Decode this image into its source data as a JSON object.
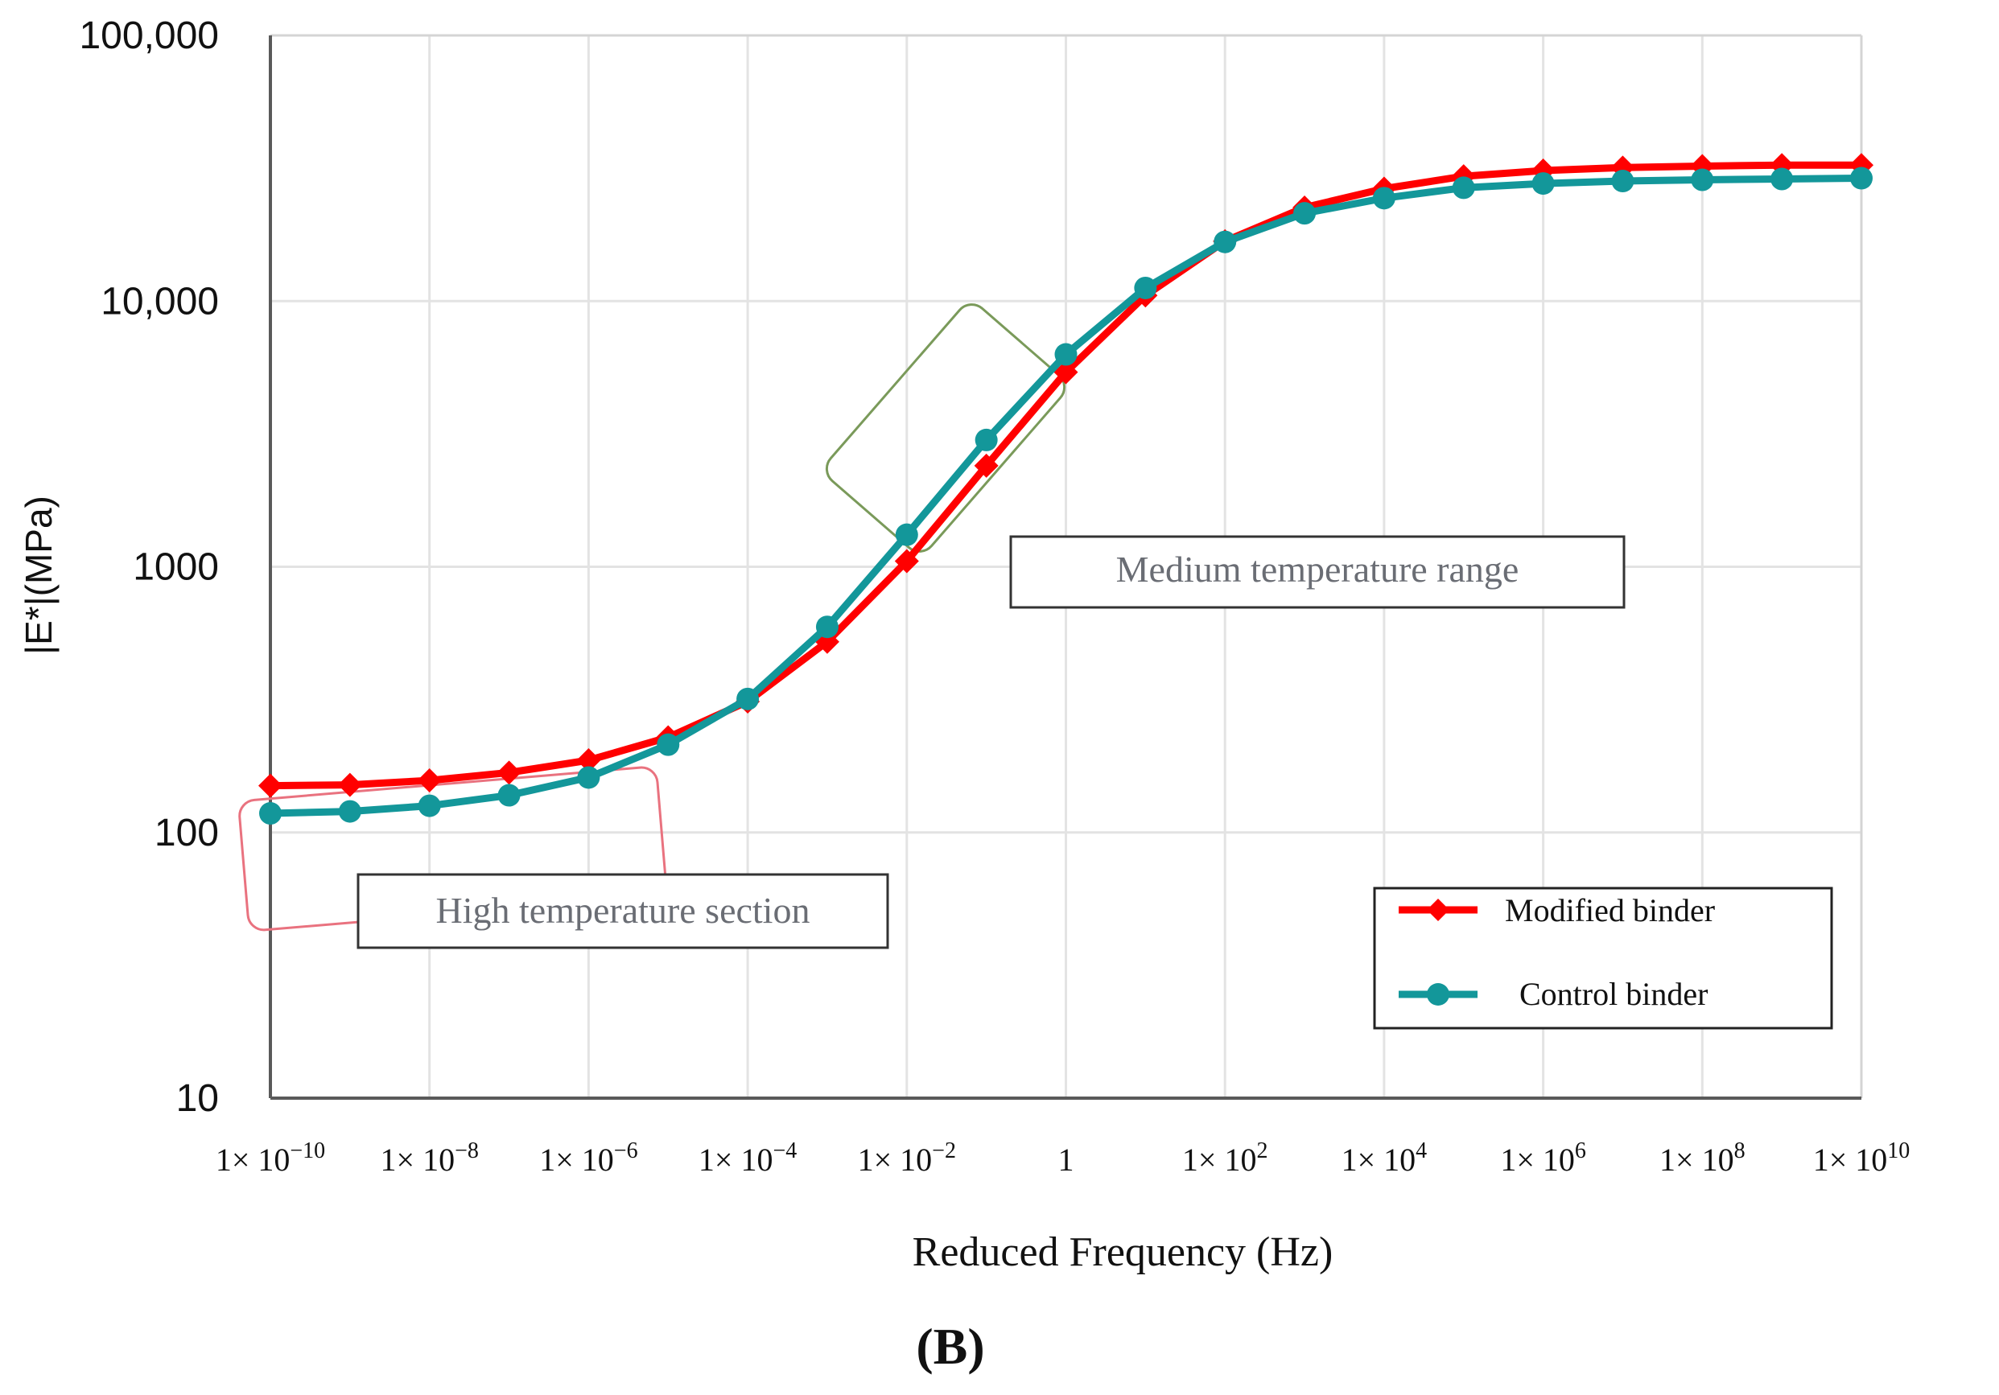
{
  "chart_data": {
    "type": "line",
    "title": "",
    "xlabel": "Reduced Frequency (Hz)",
    "ylabel": "|E*|(MPa)",
    "xscale": "log",
    "yscale": "log",
    "xlim": [
      1e-10,
      10000000000.0
    ],
    "ylim": [
      10,
      100000
    ],
    "grid": true,
    "legend_position": "bottom-right",
    "panel_label": "(B)",
    "x_ticks": [
      {
        "value": 1e-10,
        "base": "1× 10",
        "exp": "−10"
      },
      {
        "value": 1e-08,
        "base": "1× 10",
        "exp": "−8"
      },
      {
        "value": 1e-06,
        "base": "1× 10",
        "exp": "−6"
      },
      {
        "value": 0.0001,
        "base": "1× 10",
        "exp": "−4"
      },
      {
        "value": 0.01,
        "base": "1× 10",
        "exp": "−2"
      },
      {
        "value": 1,
        "base": "1",
        "exp": ""
      },
      {
        "value": 100.0,
        "base": "1× 10",
        "exp": "2"
      },
      {
        "value": 10000.0,
        "base": "1× 10",
        "exp": "4"
      },
      {
        "value": 1000000.0,
        "base": "1× 10",
        "exp": "6"
      },
      {
        "value": 100000000.0,
        "base": "1× 10",
        "exp": "8"
      },
      {
        "value": 10000000000.0,
        "base": "1× 10",
        "exp": "10"
      }
    ],
    "y_ticks": [
      {
        "value": 10,
        "label": "10"
      },
      {
        "value": 100,
        "label": "100"
      },
      {
        "value": 1000,
        "label": "1000"
      },
      {
        "value": 10000,
        "label": "10,000"
      },
      {
        "value": 100000,
        "label": "100,000"
      }
    ],
    "series": [
      {
        "name": "Modified binder",
        "color": "#ff0000",
        "marker": "diamond",
        "x": [
          1e-10,
          1e-09,
          1e-08,
          1e-07,
          1e-06,
          1e-05,
          0.0001,
          0.001,
          0.01,
          0.1,
          1,
          10,
          100,
          1000,
          10000.0,
          100000.0,
          1000000.0,
          10000000.0,
          100000000.0,
          1000000000.0,
          10000000000.0
        ],
        "values": [
          150,
          151,
          157,
          168,
          187,
          228,
          311,
          522,
          1050,
          2400,
          5400,
          10500,
          16800,
          22500,
          26500,
          29500,
          31000,
          31800,
          32200,
          32500,
          32500
        ]
      },
      {
        "name": "Control binder",
        "color": "#13979a",
        "marker": "circle",
        "x": [
          1e-10,
          1e-09,
          1e-08,
          1e-07,
          1e-06,
          1e-05,
          0.0001,
          0.001,
          0.01,
          0.1,
          1,
          10,
          100,
          1000,
          10000.0,
          100000.0,
          1000000.0,
          10000000.0,
          100000000.0,
          1000000000.0,
          10000000000.0
        ],
        "values": [
          118,
          120,
          126,
          138,
          161,
          214,
          318,
          594,
          1320,
          3000,
          6300,
          11200,
          16700,
          21400,
          24400,
          26700,
          27700,
          28300,
          28600,
          28800,
          29000
        ]
      }
    ],
    "annotations": [
      {
        "text": "High temperature section",
        "outline_color": "#e9727f"
      },
      {
        "text": "Medium temperature range",
        "outline_color": "#7a9a5a"
      }
    ]
  }
}
